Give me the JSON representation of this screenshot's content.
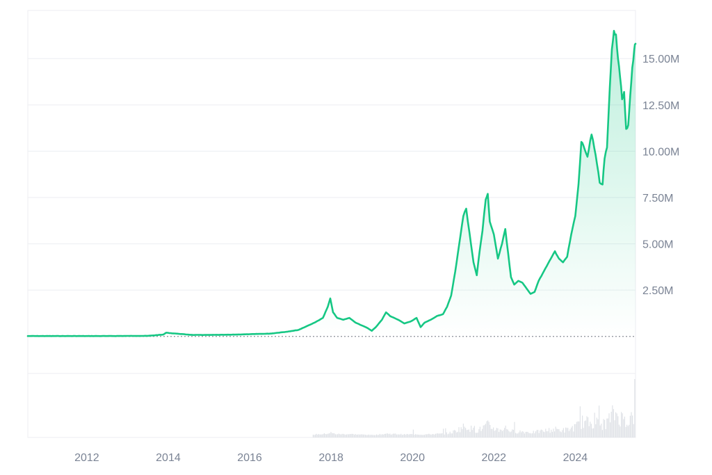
{
  "chart_data": {
    "type": "area",
    "title": "",
    "xlabel": "",
    "ylabel": "",
    "x_unit": "year",
    "xlim": [
      2010.55,
      2025.48
    ],
    "ylim": [
      -2.0,
      17.6
    ],
    "y_unit": "millions",
    "y_ticks": [
      {
        "value": 2.5,
        "label": "2.50M"
      },
      {
        "value": 5.0,
        "label": "5.00M"
      },
      {
        "value": 7.5,
        "label": "7.50M"
      },
      {
        "value": 10.0,
        "label": "10.00M"
      },
      {
        "value": 12.5,
        "label": "12.50M"
      },
      {
        "value": 15.0,
        "label": "15.00M"
      }
    ],
    "x_ticks": [
      {
        "value": 2012,
        "label": "2012"
      },
      {
        "value": 2014,
        "label": "2014"
      },
      {
        "value": 2016,
        "label": "2016"
      },
      {
        "value": 2018,
        "label": "2018"
      },
      {
        "value": 2020,
        "label": "2020"
      },
      {
        "value": 2022,
        "label": "2022"
      },
      {
        "value": 2024,
        "label": "2024"
      }
    ],
    "baseline": 0,
    "grid": true,
    "legend": "none",
    "colors": {
      "line": "#16c784",
      "fill": "#16c784",
      "grid": "#eceef2",
      "volume": "#dfe2e7",
      "baseline": "#8a8f98"
    },
    "series": [
      {
        "values_x": [
          2010.55,
          2011.5,
          2012.5,
          2013.5,
          2013.88,
          2013.95,
          2014.2,
          2014.6,
          2015.0,
          2015.5,
          2016.0,
          2016.5,
          2016.9,
          2017.2,
          2017.4,
          2017.6,
          2017.8,
          2017.92,
          2017.98,
          2018.05,
          2018.15,
          2018.3,
          2018.45,
          2018.6,
          2018.75,
          2018.9,
          2019.0,
          2019.1,
          2019.25,
          2019.35,
          2019.45,
          2019.55,
          2019.65,
          2019.8,
          2019.95,
          2020.1,
          2020.2,
          2020.3,
          2020.45,
          2020.6,
          2020.75,
          2020.85,
          2020.95,
          2021.05,
          2021.15,
          2021.25,
          2021.32,
          2021.4,
          2021.5,
          2021.58,
          2021.65,
          2021.72,
          2021.8,
          2021.85,
          2021.9,
          2022.0,
          2022.1,
          2022.2,
          2022.28,
          2022.35,
          2022.42,
          2022.5,
          2022.6,
          2022.7,
          2022.8,
          2022.9,
          2023.0,
          2023.1,
          2023.2,
          2023.3,
          2023.4,
          2023.5,
          2023.6,
          2023.7,
          2023.8,
          2023.9,
          2024.0,
          2024.08,
          2024.15,
          2024.2,
          2024.3,
          2024.4,
          2024.5,
          2024.6,
          2024.67,
          2024.72,
          2024.78,
          2024.85,
          2024.9,
          2024.95,
          2025.0,
          2025.05,
          2025.1,
          2025.15,
          2025.2,
          2025.25,
          2025.3,
          2025.35,
          2025.4,
          2025.45,
          2025.48
        ],
        "values_y": [
          0.02,
          0.02,
          0.02,
          0.03,
          0.1,
          0.2,
          0.15,
          0.08,
          0.08,
          0.09,
          0.12,
          0.15,
          0.25,
          0.35,
          0.55,
          0.75,
          1.0,
          1.6,
          2.05,
          1.3,
          1.0,
          0.9,
          1.0,
          0.75,
          0.6,
          0.45,
          0.3,
          0.5,
          0.9,
          1.3,
          1.1,
          1.0,
          0.9,
          0.7,
          0.8,
          1.0,
          0.5,
          0.75,
          0.9,
          1.1,
          1.2,
          1.6,
          2.2,
          3.5,
          5.0,
          6.5,
          6.9,
          5.6,
          4.0,
          3.3,
          4.6,
          5.7,
          7.4,
          7.7,
          6.2,
          5.5,
          4.2,
          5.0,
          5.8,
          4.5,
          3.2,
          2.8,
          3.0,
          2.9,
          2.6,
          2.3,
          2.4,
          3.0,
          3.4,
          3.8,
          4.2,
          4.6,
          4.2,
          4.0,
          4.3,
          5.5,
          6.5,
          8.2,
          10.5,
          10.3,
          9.7,
          10.9,
          9.8,
          8.3,
          8.2,
          9.6,
          10.2,
          13.5,
          15.5,
          16.5,
          16.3,
          15.0,
          14.0,
          12.8,
          13.2,
          11.2,
          11.4,
          13.0,
          14.5,
          15.5,
          15.8
        ]
      }
    ]
  }
}
